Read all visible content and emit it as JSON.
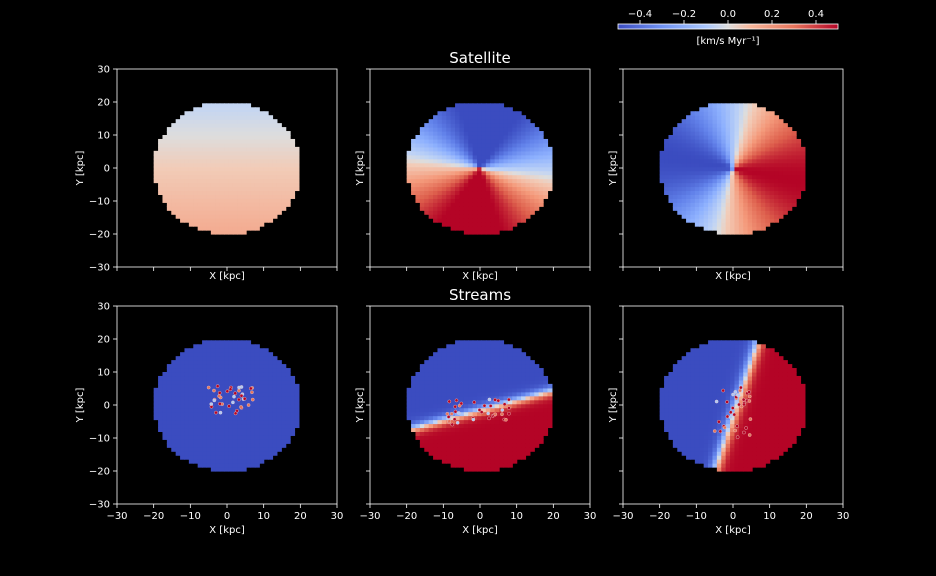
{
  "chart_data": {
    "type": "heatmap",
    "layout": "2x3 grid of velocity maps",
    "rows": [
      {
        "title": "Satellite",
        "panels": [
          {
            "xlabel": "X [kpc]",
            "ylabel": "Y [kpc]"
          },
          {
            "xlabel": "X [kpc]",
            "ylabel": "Y [kpc]"
          },
          {
            "xlabel": "X [kpc]",
            "ylabel": "Y [kpc]"
          }
        ]
      },
      {
        "title": "Streams",
        "panels": [
          {
            "xlabel": "X [kpc]",
            "ylabel": "Y [kpc]"
          },
          {
            "xlabel": "X [kpc]",
            "ylabel": "Y [kpc]"
          },
          {
            "xlabel": "X [kpc]",
            "ylabel": "Y [kpc]"
          }
        ]
      }
    ],
    "xlim": [
      -30,
      30
    ],
    "ylim": [
      -30,
      30
    ],
    "xticks": [
      -30,
      -20,
      -10,
      0,
      10,
      20,
      30
    ],
    "yticks": [
      -30,
      -20,
      -10,
      0,
      10,
      20,
      30
    ],
    "xtick_labels": [
      "−30",
      "−20",
      "−10",
      "0",
      "10",
      "20",
      "30"
    ],
    "ytick_labels": [
      "−30",
      "−20",
      "−10",
      "0",
      "10",
      "20",
      "30"
    ],
    "disk_radius": 20,
    "colorbar": {
      "label": "[km/s  Myr⁻¹]",
      "range": [
        -0.5,
        0.5
      ],
      "ticks": [
        -0.4,
        -0.2,
        0.0,
        0.2,
        0.4
      ],
      "tick_labels": [
        "−0.4",
        "−0.2",
        "0.0",
        "0.2",
        "0.4"
      ],
      "colormap": "coolwarm",
      "colors": {
        "low": "#3b4cc0",
        "mid": "#dddddd",
        "high": "#b40426"
      },
      "placement": "top-right"
    }
  }
}
